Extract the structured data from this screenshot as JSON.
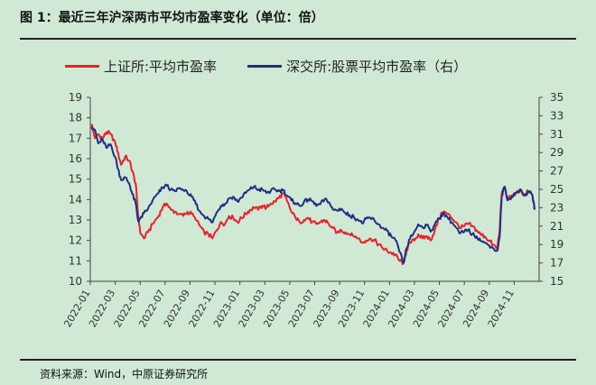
{
  "figure": {
    "title": "图 1：最近三年沪深两市平均市盈率变化（单位：倍）",
    "source": "资料来源：Wind，中原证券研究所"
  },
  "colors": {
    "background": "#cfe9d4",
    "red": "#e8222a",
    "blue": "#1f2f86"
  },
  "chart_data": {
    "type": "line",
    "title": "图 1：最近三年沪深两市平均市盈率变化（单位：倍）",
    "legend_position": "top",
    "grid": false,
    "x_axis": {
      "range": [
        "2022-01",
        "2024-12"
      ],
      "ticks": [
        "2022-01",
        "2022-03",
        "2022-05",
        "2022-07",
        "2022-09",
        "2022-11",
        "2023-01",
        "2023-03",
        "2023-05",
        "2023-07",
        "2023-09",
        "2023-11",
        "2024-01",
        "2024-03",
        "2024-05",
        "2024-07",
        "2024-09",
        "2024-11"
      ]
    },
    "y_axis_left": {
      "range": [
        10,
        19
      ],
      "ticks": [
        "10",
        "11",
        "12",
        "13",
        "14",
        "15",
        "16",
        "17",
        "18",
        "19"
      ]
    },
    "y_axis_right": {
      "range": [
        15,
        35
      ],
      "ticks": [
        "15",
        "17",
        "19",
        "21",
        "23",
        "25",
        "27",
        "29",
        "31",
        "33",
        "35"
      ]
    },
    "series": [
      {
        "name": "上证所:平均市盈率",
        "axis": "left",
        "color": "#e8222a",
        "points": [
          [
            "2022-01-04",
            17.7
          ],
          [
            "2022-01-12",
            17.0
          ],
          [
            "2022-01-20",
            17.2
          ],
          [
            "2022-02-01",
            17.0
          ],
          [
            "2022-02-10",
            17.3
          ],
          [
            "2022-02-20",
            17.2
          ],
          [
            "2022-03-01",
            16.8
          ],
          [
            "2022-03-08",
            16.3
          ],
          [
            "2022-03-15",
            15.7
          ],
          [
            "2022-03-25",
            16.1
          ],
          [
            "2022-04-05",
            15.9
          ],
          [
            "2022-04-12",
            15.4
          ],
          [
            "2022-04-20",
            14.8
          ],
          [
            "2022-04-26",
            13.3
          ],
          [
            "2022-05-01",
            12.4
          ],
          [
            "2022-05-10",
            12.1
          ],
          [
            "2022-05-20",
            12.4
          ],
          [
            "2022-06-01",
            12.8
          ],
          [
            "2022-06-15",
            13.2
          ],
          [
            "2022-06-25",
            13.6
          ],
          [
            "2022-07-05",
            13.8
          ],
          [
            "2022-07-15",
            13.5
          ],
          [
            "2022-07-25",
            13.4
          ],
          [
            "2022-08-05",
            13.3
          ],
          [
            "2022-08-15",
            13.2
          ],
          [
            "2022-08-25",
            13.4
          ],
          [
            "2022-09-05",
            13.3
          ],
          [
            "2022-09-15",
            13.0
          ],
          [
            "2022-09-25",
            12.7
          ],
          [
            "2022-10-05",
            12.4
          ],
          [
            "2022-10-15",
            12.3
          ],
          [
            "2022-10-25",
            12.1
          ],
          [
            "2022-11-05",
            12.5
          ],
          [
            "2022-11-15",
            12.9
          ],
          [
            "2022-11-25",
            12.8
          ],
          [
            "2022-12-05",
            13.2
          ],
          [
            "2022-12-15",
            13.1
          ],
          [
            "2022-12-25",
            12.9
          ],
          [
            "2023-01-05",
            13.1
          ],
          [
            "2023-01-15",
            13.3
          ],
          [
            "2023-01-25",
            13.5
          ],
          [
            "2023-02-05",
            13.6
          ],
          [
            "2023-02-15",
            13.5
          ],
          [
            "2023-02-25",
            13.7
          ],
          [
            "2023-03-05",
            13.6
          ],
          [
            "2023-03-15",
            13.8
          ],
          [
            "2023-03-25",
            13.9
          ],
          [
            "2023-04-05",
            14.1
          ],
          [
            "2023-04-15",
            14.3
          ],
          [
            "2023-04-25",
            13.9
          ],
          [
            "2023-05-05",
            13.4
          ],
          [
            "2023-05-15",
            13.1
          ],
          [
            "2023-05-25",
            12.9
          ],
          [
            "2023-06-05",
            13.0
          ],
          [
            "2023-06-15",
            13.1
          ],
          [
            "2023-06-25",
            12.9
          ],
          [
            "2023-07-05",
            12.8
          ],
          [
            "2023-07-15",
            12.9
          ],
          [
            "2023-07-25",
            13.0
          ],
          [
            "2023-08-05",
            12.8
          ],
          [
            "2023-08-15",
            12.6
          ],
          [
            "2023-08-25",
            12.4
          ],
          [
            "2023-09-05",
            12.5
          ],
          [
            "2023-09-15",
            12.4
          ],
          [
            "2023-09-25",
            12.3
          ],
          [
            "2023-10-05",
            12.2
          ],
          [
            "2023-10-15",
            12.1
          ],
          [
            "2023-10-25",
            11.9
          ],
          [
            "2023-11-05",
            12.0
          ],
          [
            "2023-11-15",
            12.1
          ],
          [
            "2023-11-25",
            12.0
          ],
          [
            "2023-12-05",
            11.8
          ],
          [
            "2023-12-15",
            11.6
          ],
          [
            "2023-12-25",
            11.5
          ],
          [
            "2024-01-05",
            11.4
          ],
          [
            "2024-01-15",
            11.3
          ],
          [
            "2024-01-25",
            11.0
          ],
          [
            "2024-02-05",
            10.9
          ],
          [
            "2024-02-12",
            11.5
          ],
          [
            "2024-02-20",
            11.9
          ],
          [
            "2024-03-01",
            12.0
          ],
          [
            "2024-03-10",
            12.3
          ],
          [
            "2024-03-20",
            12.1
          ],
          [
            "2024-04-01",
            12.2
          ],
          [
            "2024-04-10",
            12.0
          ],
          [
            "2024-04-20",
            12.5
          ],
          [
            "2024-05-01",
            13.1
          ],
          [
            "2024-05-10",
            13.4
          ],
          [
            "2024-05-20",
            13.3
          ],
          [
            "2024-06-01",
            13.1
          ],
          [
            "2024-06-10",
            12.9
          ],
          [
            "2024-06-20",
            12.6
          ],
          [
            "2024-07-01",
            12.7
          ],
          [
            "2024-07-10",
            12.8
          ],
          [
            "2024-07-20",
            12.7
          ],
          [
            "2024-08-01",
            12.5
          ],
          [
            "2024-08-10",
            12.3
          ],
          [
            "2024-08-20",
            12.2
          ],
          [
            "2024-09-01",
            12.0
          ],
          [
            "2024-09-10",
            11.8
          ],
          [
            "2024-09-20",
            11.6
          ],
          [
            "2024-09-26",
            12.5
          ],
          [
            "2024-10-01",
            14.3
          ],
          [
            "2024-10-08",
            14.6
          ],
          [
            "2024-10-15",
            14.0
          ],
          [
            "2024-10-25",
            14.2
          ],
          [
            "2024-11-05",
            14.3
          ],
          [
            "2024-11-15",
            14.4
          ],
          [
            "2024-11-25",
            14.2
          ],
          [
            "2024-12-05",
            14.4
          ],
          [
            "2024-12-15",
            14.2
          ],
          [
            "2024-12-20",
            13.5
          ]
        ]
      },
      {
        "name": "深交所:股票平均市盈率（右）",
        "axis": "right",
        "color": "#1f2f86",
        "points": [
          [
            "2022-01-04",
            31.8
          ],
          [
            "2022-01-12",
            31.5
          ],
          [
            "2022-01-20",
            30.0
          ],
          [
            "2022-02-01",
            30.4
          ],
          [
            "2022-02-10",
            29.5
          ],
          [
            "2022-02-20",
            29.9
          ],
          [
            "2022-03-01",
            28.5
          ],
          [
            "2022-03-08",
            27.2
          ],
          [
            "2022-03-15",
            26.0
          ],
          [
            "2022-03-25",
            26.3
          ],
          [
            "2022-04-05",
            25.6
          ],
          [
            "2022-04-12",
            24.5
          ],
          [
            "2022-04-20",
            23.5
          ],
          [
            "2022-04-26",
            21.6
          ],
          [
            "2022-05-01",
            21.8
          ],
          [
            "2022-05-10",
            22.4
          ],
          [
            "2022-05-20",
            22.9
          ],
          [
            "2022-06-01",
            23.8
          ],
          [
            "2022-06-15",
            24.6
          ],
          [
            "2022-06-25",
            25.2
          ],
          [
            "2022-07-05",
            25.4
          ],
          [
            "2022-07-15",
            25.0
          ],
          [
            "2022-07-25",
            24.8
          ],
          [
            "2022-08-05",
            25.1
          ],
          [
            "2022-08-15",
            24.9
          ],
          [
            "2022-08-25",
            24.6
          ],
          [
            "2022-09-05",
            24.2
          ],
          [
            "2022-09-15",
            23.4
          ],
          [
            "2022-09-25",
            22.6
          ],
          [
            "2022-10-05",
            22.1
          ],
          [
            "2022-10-15",
            21.8
          ],
          [
            "2022-10-25",
            21.4
          ],
          [
            "2022-11-05",
            22.5
          ],
          [
            "2022-11-15",
            23.2
          ],
          [
            "2022-11-25",
            23.4
          ],
          [
            "2022-12-05",
            24.0
          ],
          [
            "2022-12-15",
            24.2
          ],
          [
            "2022-12-25",
            23.7
          ],
          [
            "2023-01-05",
            24.1
          ],
          [
            "2023-01-15",
            24.6
          ],
          [
            "2023-01-25",
            25.0
          ],
          [
            "2023-02-05",
            25.3
          ],
          [
            "2023-02-15",
            24.9
          ],
          [
            "2023-02-25",
            25.0
          ],
          [
            "2023-03-05",
            24.6
          ],
          [
            "2023-03-15",
            24.8
          ],
          [
            "2023-03-25",
            25.0
          ],
          [
            "2023-04-05",
            24.8
          ],
          [
            "2023-04-15",
            24.9
          ],
          [
            "2023-04-25",
            24.3
          ],
          [
            "2023-05-05",
            23.8
          ],
          [
            "2023-05-15",
            23.5
          ],
          [
            "2023-05-25",
            23.2
          ],
          [
            "2023-06-05",
            23.6
          ],
          [
            "2023-06-15",
            23.9
          ],
          [
            "2023-06-25",
            23.7
          ],
          [
            "2023-07-05",
            23.2
          ],
          [
            "2023-07-15",
            23.4
          ],
          [
            "2023-07-25",
            23.9
          ],
          [
            "2023-08-05",
            23.6
          ],
          [
            "2023-08-15",
            22.8
          ],
          [
            "2023-08-25",
            22.7
          ],
          [
            "2023-09-05",
            22.9
          ],
          [
            "2023-09-15",
            22.4
          ],
          [
            "2023-09-25",
            22.2
          ],
          [
            "2023-10-05",
            22.0
          ],
          [
            "2023-10-15",
            21.7
          ],
          [
            "2023-10-25",
            21.3
          ],
          [
            "2023-11-05",
            21.8
          ],
          [
            "2023-11-15",
            21.9
          ],
          [
            "2023-11-25",
            21.6
          ],
          [
            "2023-12-05",
            21.2
          ],
          [
            "2023-12-15",
            20.8
          ],
          [
            "2023-12-25",
            20.5
          ],
          [
            "2024-01-05",
            19.9
          ],
          [
            "2024-01-15",
            19.5
          ],
          [
            "2024-01-25",
            18.2
          ],
          [
            "2024-02-05",
            17.0
          ],
          [
            "2024-02-12",
            18.6
          ],
          [
            "2024-02-20",
            19.6
          ],
          [
            "2024-03-01",
            20.4
          ],
          [
            "2024-03-10",
            21.2
          ],
          [
            "2024-03-20",
            20.9
          ],
          [
            "2024-04-01",
            21.1
          ],
          [
            "2024-04-10",
            20.4
          ],
          [
            "2024-04-20",
            21.2
          ],
          [
            "2024-05-01",
            21.8
          ],
          [
            "2024-05-10",
            22.4
          ],
          [
            "2024-05-20",
            22.0
          ],
          [
            "2024-06-01",
            21.4
          ],
          [
            "2024-06-10",
            20.9
          ],
          [
            "2024-06-20",
            20.2
          ],
          [
            "2024-07-01",
            20.4
          ],
          [
            "2024-07-10",
            20.6
          ],
          [
            "2024-07-20",
            20.1
          ],
          [
            "2024-08-01",
            19.9
          ],
          [
            "2024-08-10",
            19.4
          ],
          [
            "2024-08-20",
            19.2
          ],
          [
            "2024-09-01",
            18.9
          ],
          [
            "2024-09-10",
            18.6
          ],
          [
            "2024-09-20",
            18.3
          ],
          [
            "2024-09-26",
            19.8
          ],
          [
            "2024-10-01",
            24.3
          ],
          [
            "2024-10-08",
            25.3
          ],
          [
            "2024-10-15",
            23.8
          ],
          [
            "2024-10-25",
            24.2
          ],
          [
            "2024-11-05",
            24.6
          ],
          [
            "2024-11-15",
            25.0
          ],
          [
            "2024-11-25",
            24.3
          ],
          [
            "2024-12-05",
            24.8
          ],
          [
            "2024-12-15",
            24.4
          ],
          [
            "2024-12-20",
            22.8
          ]
        ]
      }
    ]
  }
}
